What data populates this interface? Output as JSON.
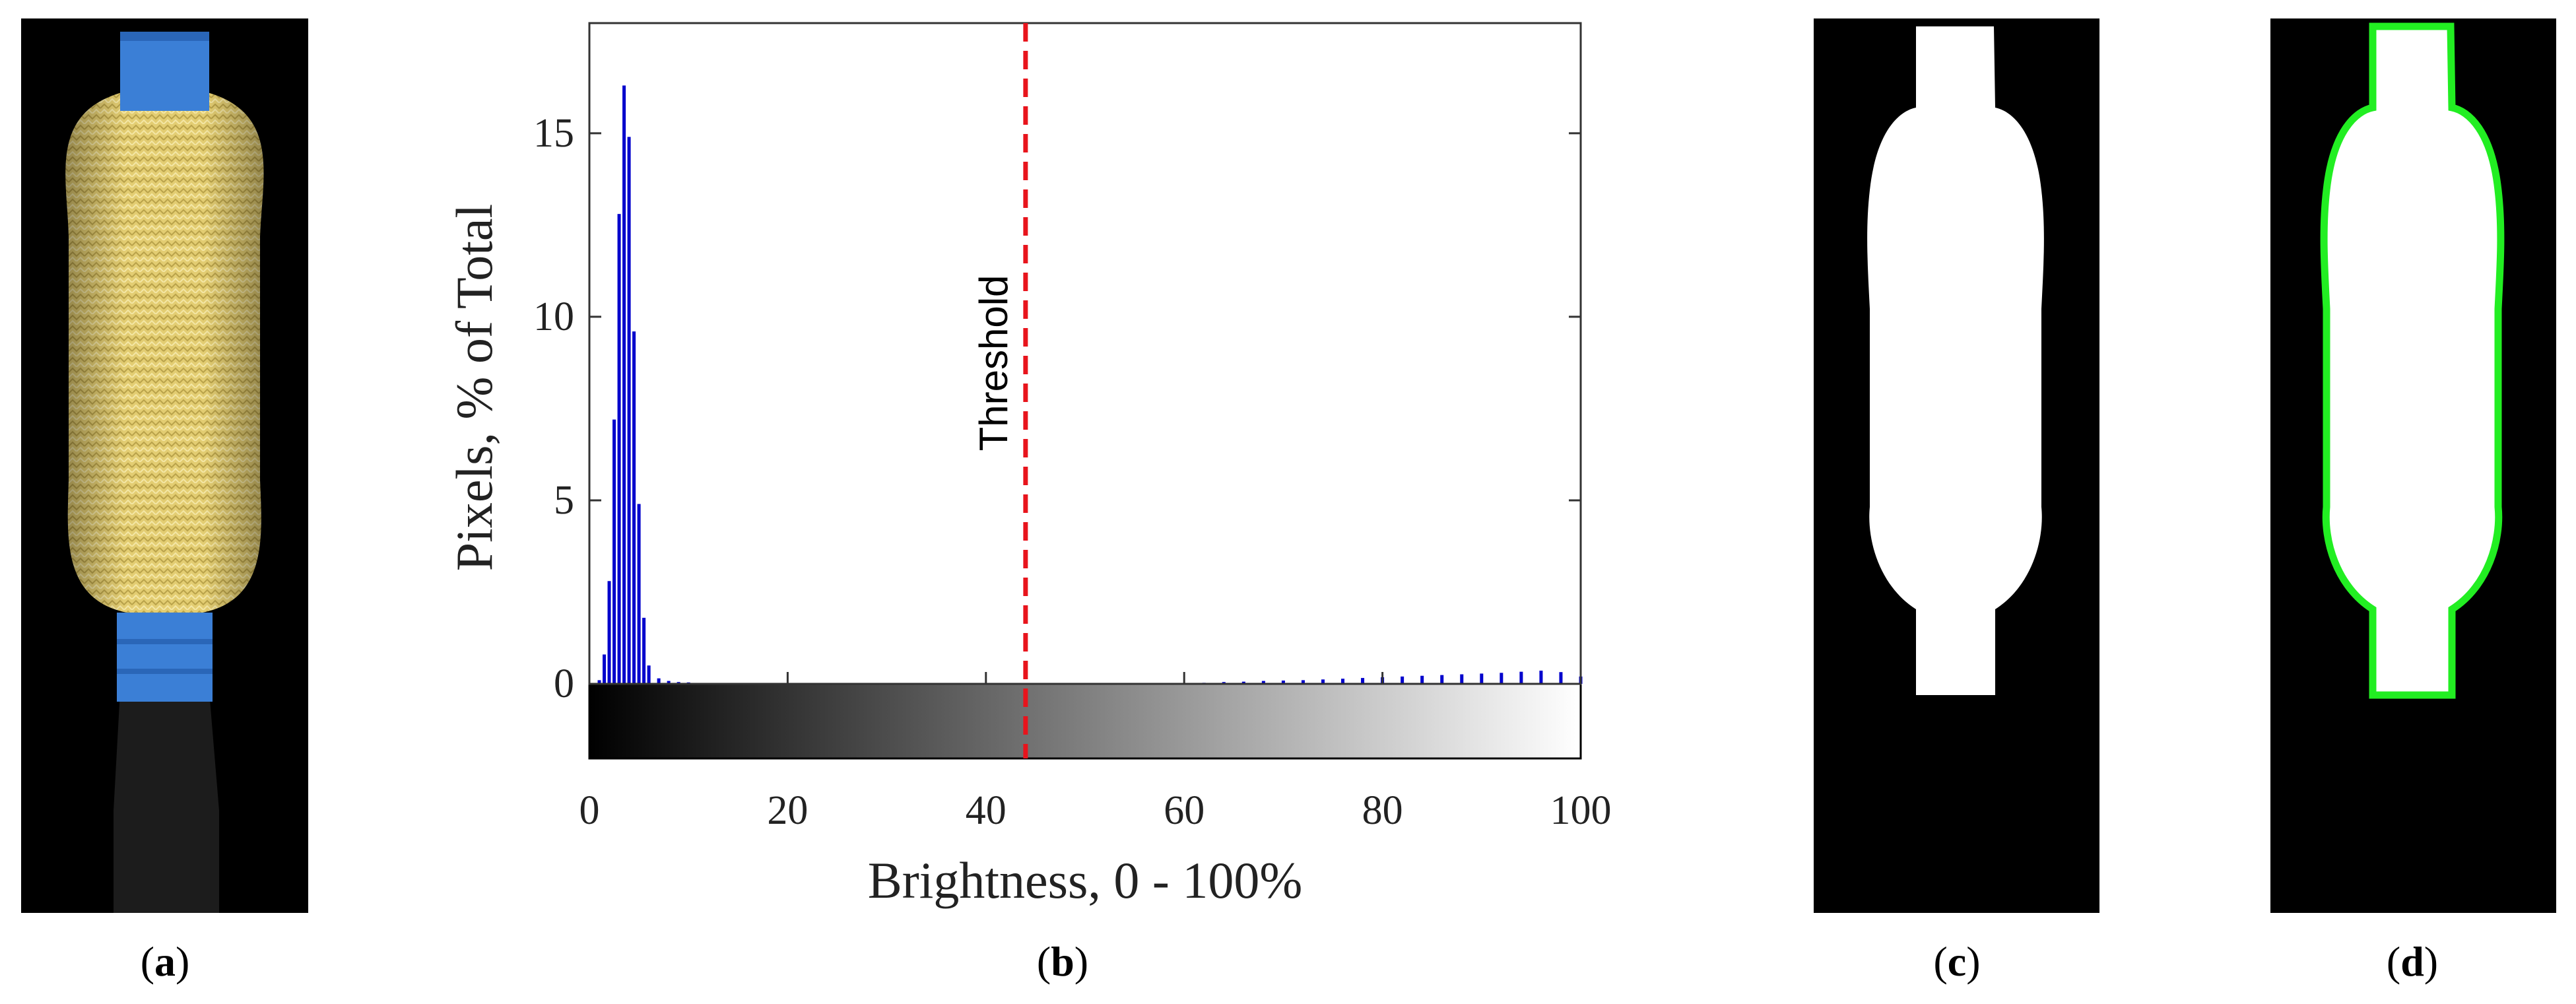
{
  "captions": {
    "a": "a",
    "b": "b",
    "c": "c",
    "d": "d"
  },
  "colors": {
    "panel_background": "#000000",
    "tape_blue": "#3b7fd6",
    "braid_yellow": "#e7d27a",
    "mask_white": "#ffffff",
    "contour_green": "#22ee22",
    "histogram_bars": "#0000cc",
    "threshold_line": "#e8141c"
  },
  "icons": {
    "a": "photo-of-braided-specimen",
    "c": "binary-mask-silhouette",
    "d": "outlined-silhouette"
  },
  "chart_data": {
    "type": "bar",
    "title": "",
    "xlabel": "Brightness, 0 - 100%",
    "ylabel": "Pixels, % of Total",
    "xlim": [
      0,
      100
    ],
    "ylim": [
      0,
      18
    ],
    "xticks": [
      0,
      20,
      40,
      60,
      80,
      100
    ],
    "yticks": [
      0,
      5,
      10,
      15
    ],
    "grid": false,
    "legend": "none",
    "colorbar": "grayscale gradient below x-axis, black at 0 to white at 100",
    "threshold": {
      "x": 44,
      "label": "Threshold",
      "style": "dashed red vertical line"
    },
    "series": [
      {
        "x": [
          1.0,
          1.5,
          2.0,
          2.5,
          3.0,
          3.5,
          4.0,
          4.5,
          5.0,
          5.5,
          6.0,
          7.0,
          8.0,
          9.0,
          10.0,
          60,
          62,
          64,
          66,
          68,
          70,
          72,
          74,
          76,
          78,
          80,
          82,
          84,
          86,
          88,
          90,
          92,
          94,
          96,
          98,
          100
        ],
        "values": [
          0.1,
          0.8,
          2.8,
          7.2,
          12.8,
          16.3,
          14.9,
          9.6,
          4.9,
          1.8,
          0.5,
          0.15,
          0.08,
          0.05,
          0.04,
          0.02,
          0.03,
          0.05,
          0.06,
          0.08,
          0.09,
          0.1,
          0.12,
          0.14,
          0.16,
          0.18,
          0.2,
          0.22,
          0.24,
          0.26,
          0.28,
          0.3,
          0.33,
          0.36,
          0.32,
          0.2
        ]
      }
    ]
  }
}
